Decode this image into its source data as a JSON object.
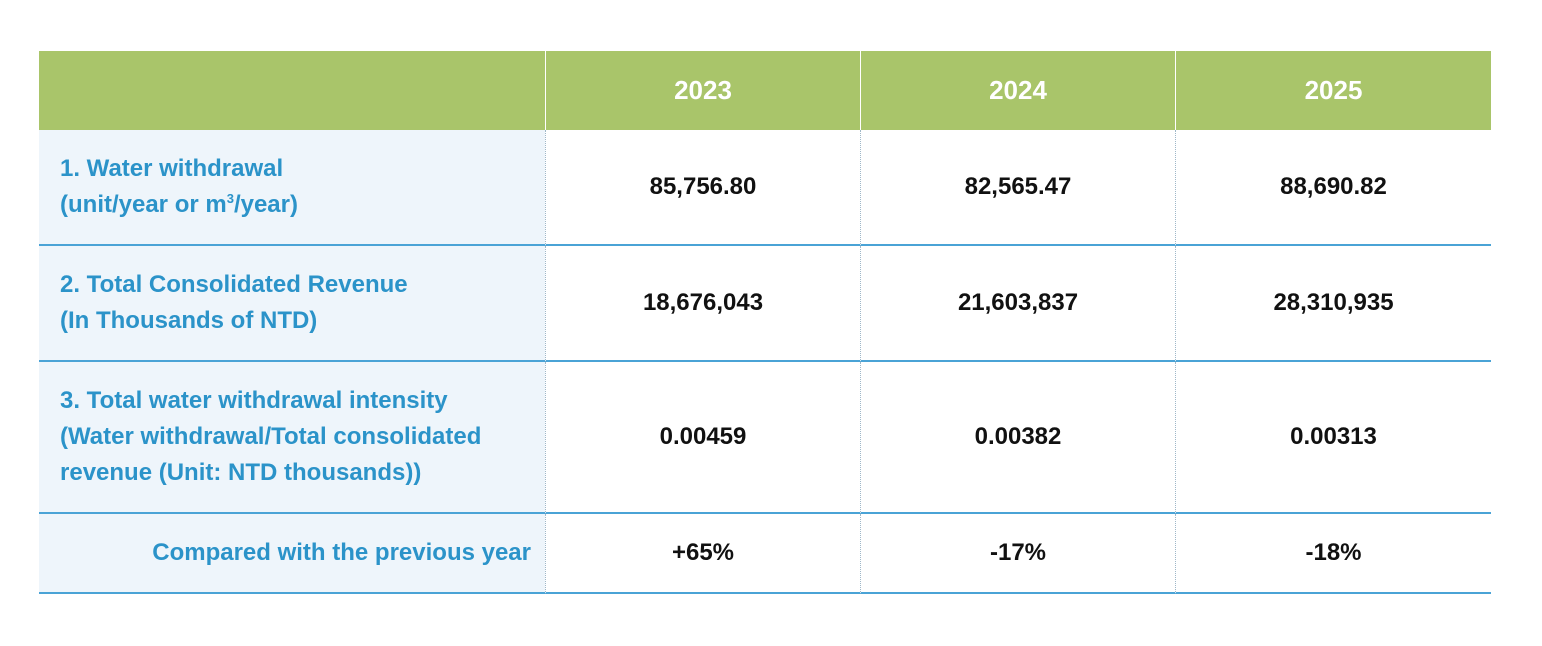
{
  "header": {
    "years": [
      "2023",
      "2024",
      "2025"
    ]
  },
  "rows": [
    {
      "label_line1": "1. Water withdrawal",
      "label_line2_pre": "(unit/year or m",
      "label_line2_sup": "3",
      "label_line2_post": "/year)",
      "values": [
        "85,756.80",
        "82,565.47",
        "88,690.82"
      ]
    },
    {
      "label_line1": "2. Total Consolidated Revenue",
      "label_line2": "(In Thousands of NTD)",
      "values": [
        "18,676,043",
        "21,603,837",
        "28,310,935"
      ]
    },
    {
      "label_line1": "3. Total water withdrawal intensity",
      "label_line2": "(Water withdrawal/Total consolidated",
      "label_line3": "revenue (Unit: NTD thousands))",
      "values": [
        "0.00459",
        "0.00382",
        "0.00313"
      ]
    },
    {
      "label_line1": "Compared with the previous year",
      "values": [
        "+65%",
        "-17%",
        "-18%"
      ]
    }
  ],
  "colors": {
    "header_bg": "#a9c56a",
    "label_text": "#2b93c9",
    "label_bg": "#eef5fb",
    "row_border": "#4aa3d6"
  }
}
